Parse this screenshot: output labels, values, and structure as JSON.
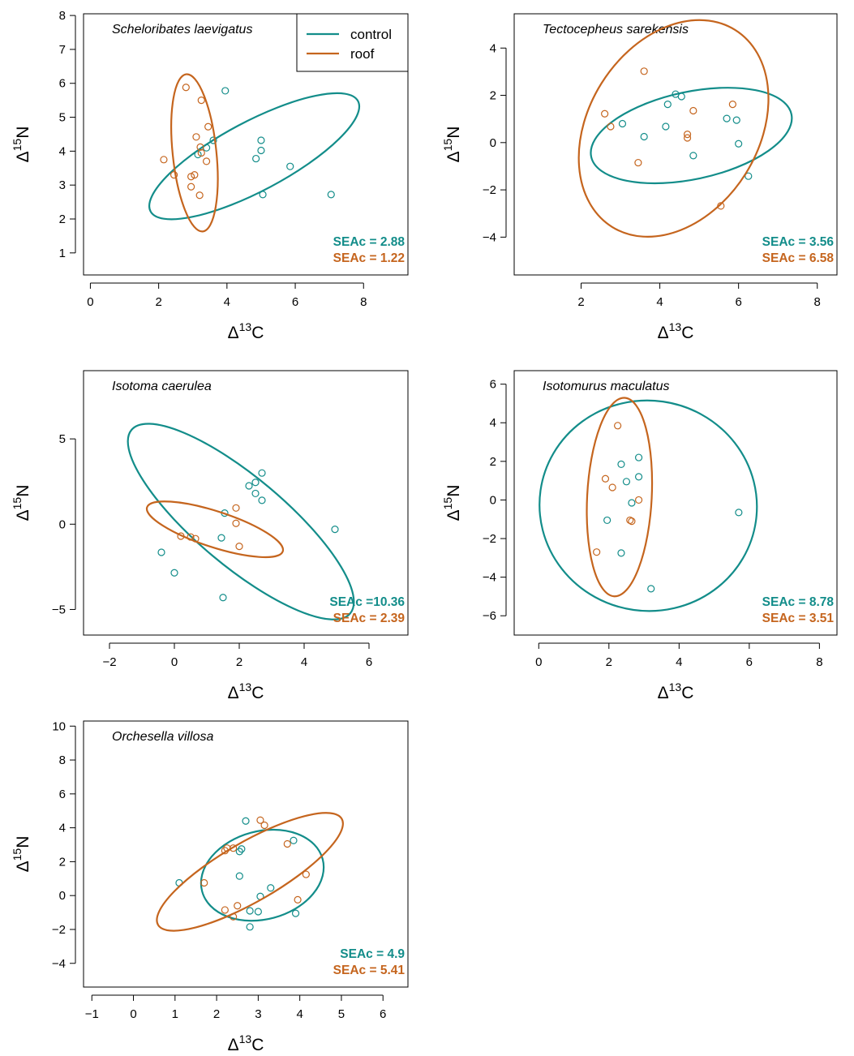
{
  "colors": {
    "control": "#138d8a",
    "roof": "#c5651e"
  },
  "legend": {
    "control": "control",
    "roof": "roof"
  },
  "axis_labels": {
    "x_delta": "Δ",
    "x_sup": "13",
    "x_el": "C",
    "y_delta": "Δ",
    "y_sup": "15",
    "y_el": "N"
  },
  "chart_data": [
    {
      "type": "scatter",
      "title": "Scheloribates laevigatus",
      "xlabel": "Δ13C",
      "ylabel": "Δ15N",
      "xlim": [
        -0.2,
        9.3
      ],
      "ylim": [
        0.35,
        8.05
      ],
      "xticks": [
        0,
        2,
        4,
        6,
        8
      ],
      "yticks": [
        1,
        2,
        3,
        4,
        5,
        6,
        7,
        8
      ],
      "legend": [
        "control",
        "roof"
      ],
      "series": [
        {
          "name": "control",
          "seac_label": "SEAc = 2.88",
          "points": [
            [
              3.95,
              5.78
            ],
            [
              3.4,
              4.1
            ],
            [
              3.6,
              4.32
            ],
            [
              3.15,
              3.9
            ],
            [
              5.0,
              4.32
            ],
            [
              5.0,
              4.02
            ],
            [
              4.85,
              3.78
            ],
            [
              5.85,
              3.55
            ],
            [
              5.05,
              2.72
            ],
            [
              7.05,
              2.72
            ]
          ],
          "ellipse": {
            "cx": 4.8,
            "cy": 3.85,
            "rx": 3.44,
            "ry": 1.02,
            "angle": -28
          }
        },
        {
          "name": "roof",
          "seac_label": "SEAc = 1.22",
          "points": [
            [
              2.8,
              5.88
            ],
            [
              3.25,
              5.5
            ],
            [
              3.45,
              4.72
            ],
            [
              3.1,
              4.42
            ],
            [
              3.22,
              4.12
            ],
            [
              3.25,
              3.95
            ],
            [
              3.4,
              3.7
            ],
            [
              2.15,
              3.75
            ],
            [
              2.45,
              3.3
            ],
            [
              3.05,
              3.3
            ],
            [
              2.95,
              3.25
            ],
            [
              2.95,
              2.95
            ],
            [
              3.2,
              2.7
            ]
          ],
          "ellipse": {
            "cx": 3.05,
            "cy": 3.95,
            "rx": 0.64,
            "ry": 2.33,
            "angle": -6
          }
        }
      ]
    },
    {
      "type": "scatter",
      "title": "Tectocepheus sarekensis",
      "xlabel": "Δ13C",
      "ylabel": "Δ15N",
      "xlim": [
        0.3,
        8.5
      ],
      "ylim": [
        -5.6,
        5.45
      ],
      "xticks": [
        2,
        4,
        6,
        8
      ],
      "yticks": [
        -4,
        -2,
        0,
        2,
        4
      ],
      "series": [
        {
          "name": "control",
          "seac_label": "SEAc = 3.56",
          "points": [
            [
              4.4,
              2.05
            ],
            [
              4.55,
              1.95
            ],
            [
              4.2,
              1.62
            ],
            [
              3.05,
              0.8
            ],
            [
              4.15,
              0.68
            ],
            [
              5.7,
              1.02
            ],
            [
              5.95,
              0.95
            ],
            [
              3.6,
              0.25
            ],
            [
              6.0,
              -0.05
            ],
            [
              4.85,
              -0.55
            ],
            [
              6.25,
              -1.42
            ]
          ],
          "ellipse": {
            "cx": 4.8,
            "cy": 0.3,
            "rx": 2.6,
            "ry": 1.85,
            "angle": -12
          }
        },
        {
          "name": "roof",
          "seac_label": "SEAc = 6.58",
          "points": [
            [
              3.6,
              3.02
            ],
            [
              5.85,
              1.62
            ],
            [
              4.85,
              1.35
            ],
            [
              2.6,
              1.22
            ],
            [
              2.75,
              0.68
            ],
            [
              4.7,
              0.35
            ],
            [
              4.7,
              0.2
            ],
            [
              3.45,
              -0.85
            ],
            [
              5.55,
              -2.68
            ]
          ],
          "ellipse": {
            "cx": 4.35,
            "cy": 0.6,
            "rx": 2.95,
            "ry": 3.6,
            "angle": -58
          }
        }
      ]
    },
    {
      "type": "scatter",
      "title": "Isotoma caerulea",
      "xlabel": "Δ13C",
      "ylabel": "Δ15N",
      "xlim": [
        -2.8,
        7.2
      ],
      "ylim": [
        -6.5,
        9.0
      ],
      "xticks": [
        -2,
        0,
        2,
        4,
        6
      ],
      "yticks": [
        -5,
        0,
        5
      ],
      "series": [
        {
          "name": "control",
          "seac_label": "SEAc =10.36",
          "points": [
            [
              2.7,
              3.0
            ],
            [
              2.5,
              2.45
            ],
            [
              2.3,
              2.25
            ],
            [
              2.5,
              1.8
            ],
            [
              2.7,
              1.4
            ],
            [
              1.55,
              0.65
            ],
            [
              1.45,
              -0.8
            ],
            [
              4.95,
              -0.3
            ],
            [
              -0.4,
              -1.65
            ],
            [
              0.0,
              -2.85
            ],
            [
              1.5,
              -4.3
            ]
          ],
          "ellipse": {
            "cx": 2.05,
            "cy": 0.15,
            "rx": 4.4,
            "ry": 2.6,
            "angle": 40
          }
        },
        {
          "name": "roof",
          "seac_label": "SEAc = 2.39",
          "points": [
            [
              1.9,
              0.95
            ],
            [
              1.9,
              0.05
            ],
            [
              0.2,
              -0.7
            ],
            [
              0.5,
              -0.75
            ],
            [
              0.65,
              -0.85
            ],
            [
              2.0,
              -1.3
            ]
          ],
          "ellipse": {
            "cx": 1.25,
            "cy": -0.3,
            "rx": 2.2,
            "ry": 1.05,
            "angle": 18
          }
        }
      ]
    },
    {
      "type": "scatter",
      "title": "Isotomurus maculatus",
      "xlabel": "Δ13C",
      "ylabel": "Δ15N",
      "xlim": [
        -0.7,
        8.5
      ],
      "ylim": [
        -7.0,
        6.7
      ],
      "xticks": [
        0,
        2,
        4,
        6,
        8
      ],
      "yticks": [
        -6,
        -4,
        -2,
        0,
        2,
        4,
        6
      ],
      "series": [
        {
          "name": "control",
          "seac_label": "SEAc = 8.78",
          "points": [
            [
              2.85,
              2.2
            ],
            [
              2.35,
              1.85
            ],
            [
              2.85,
              1.2
            ],
            [
              2.5,
              0.95
            ],
            [
              2.65,
              -0.15
            ],
            [
              5.7,
              -0.65
            ],
            [
              1.95,
              -1.05
            ],
            [
              2.35,
              -2.75
            ],
            [
              3.2,
              -4.6
            ]
          ],
          "ellipse": {
            "cx": 3.12,
            "cy": -0.3,
            "rx": 3.1,
            "ry": 5.45,
            "angle": 8
          }
        },
        {
          "name": "roof",
          "seac_label": "SEAc = 3.51",
          "points": [
            [
              2.25,
              3.85
            ],
            [
              1.9,
              1.1
            ],
            [
              2.85,
              0.0
            ],
            [
              2.1,
              0.65
            ],
            [
              2.6,
              -1.05
            ],
            [
              2.65,
              -1.1
            ],
            [
              1.65,
              -2.7
            ]
          ],
          "ellipse": {
            "cx": 2.3,
            "cy": 0.15,
            "rx": 0.92,
            "ry": 5.15,
            "angle": 3
          }
        }
      ]
    },
    {
      "type": "scatter",
      "title": "Orchesella villosa",
      "xlabel": "Δ13C",
      "ylabel": "Δ15N",
      "xlim": [
        -1.2,
        6.6
      ],
      "ylim": [
        -5.4,
        10.3
      ],
      "xticks": [
        -1,
        0,
        1,
        2,
        3,
        4,
        5,
        6
      ],
      "yticks": [
        -4,
        -2,
        0,
        2,
        4,
        6,
        8,
        10
      ],
      "series": [
        {
          "name": "control",
          "seac_label": "SEAc = 4.9",
          "points": [
            [
              2.7,
              4.4
            ],
            [
              3.85,
              3.25
            ],
            [
              2.6,
              2.75
            ],
            [
              2.55,
              2.6
            ],
            [
              1.1,
              0.75
            ],
            [
              2.55,
              1.15
            ],
            [
              3.3,
              0.45
            ],
            [
              3.05,
              -0.05
            ],
            [
              2.8,
              -0.9
            ],
            [
              3.0,
              -0.95
            ],
            [
              3.9,
              -1.05
            ],
            [
              2.8,
              -1.85
            ]
          ],
          "ellipse": {
            "cx": 3.1,
            "cy": 1.2,
            "rx": 1.5,
            "ry": 2.6,
            "angle": -15
          }
        },
        {
          "name": "roof",
          "seac_label": "SEAc = 5.41",
          "points": [
            [
              3.05,
              4.45
            ],
            [
              3.15,
              4.15
            ],
            [
              3.7,
              3.05
            ],
            [
              2.2,
              2.65
            ],
            [
              2.25,
              2.8
            ],
            [
              2.4,
              2.8
            ],
            [
              4.15,
              1.25
            ],
            [
              1.7,
              0.75
            ],
            [
              3.95,
              -0.25
            ],
            [
              2.5,
              -0.6
            ],
            [
              2.2,
              -0.85
            ],
            [
              2.4,
              -1.25
            ]
          ],
          "ellipse": {
            "cx": 2.8,
            "cy": 1.4,
            "rx": 2.55,
            "ry": 1.75,
            "angle": -30
          }
        }
      ]
    }
  ]
}
